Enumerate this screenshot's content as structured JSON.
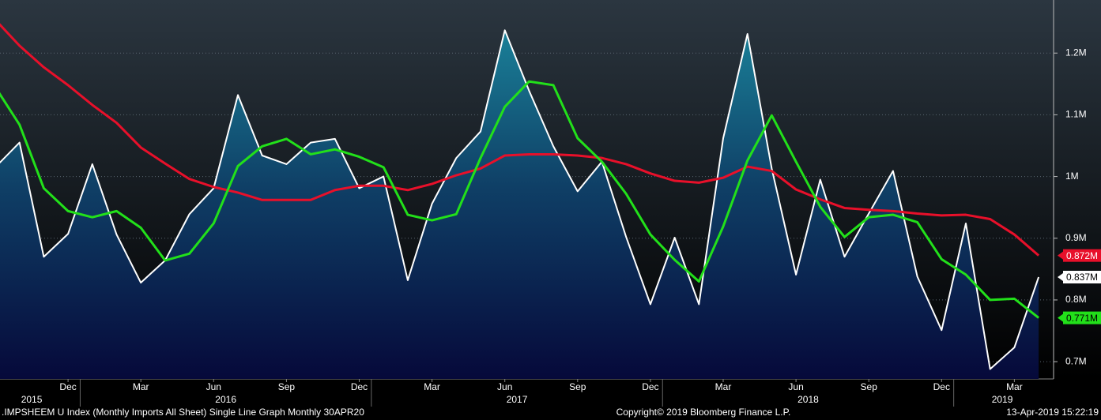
{
  "chart_data": {
    "type": "line",
    "categories": [
      null,
      null,
      null,
      "Dec",
      null,
      null,
      "Mar",
      null,
      null,
      "Jun",
      null,
      null,
      "Sep",
      null,
      null,
      "Dec",
      null,
      null,
      "Mar",
      null,
      null,
      "Jun",
      null,
      null,
      "Sep",
      null,
      null,
      "Dec",
      null,
      null,
      "Mar",
      null,
      null,
      "Jun",
      null,
      null,
      "Sep",
      null,
      null,
      "Dec",
      null,
      null,
      "Mar",
      null
    ],
    "years": [
      "2015",
      "2016",
      "2017",
      "2018",
      "2019"
    ],
    "year_starts": [
      0,
      4,
      16,
      28,
      40
    ],
    "series": [
      {
        "color": "#ffffff",
        "area": true,
        "label_text_color": "#000000",
        "last_value_label": "0.837M",
        "values": [
          1015000,
          1055000,
          870000,
          907000,
          1020000,
          906000,
          828000,
          864000,
          939000,
          981000,
          1132000,
          1034000,
          1020000,
          1055000,
          1061000,
          981000,
          1000000,
          832000,
          956000,
          1030000,
          1073000,
          1237000,
          1139000,
          1049000,
          976000,
          1024000,
          902000,
          793000,
          901000,
          793000,
          1062000,
          1231000,
          1013000,
          841000,
          995000,
          870000,
          940000,
          1009000,
          838000,
          751000,
          924000,
          688000,
          723000,
          837000
        ]
      },
      {
        "color": "#e8102a",
        "label_text_color": "#ffffff",
        "last_value_label": "0.872M",
        "values": [
          1254000,
          1212000,
          1177000,
          1148000,
          1116000,
          1087000,
          1047000,
          1021000,
          996000,
          983000,
          974000,
          962000,
          962000,
          962000,
          978000,
          985000,
          985000,
          978000,
          988000,
          1002000,
          1013000,
          1034000,
          1036000,
          1036000,
          1034000,
          1030000,
          1020000,
          1005000,
          993000,
          990000,
          998000,
          1016000,
          1009000,
          979000,
          963000,
          949000,
          946000,
          944000,
          940000,
          937000,
          938000,
          931000,
          906000,
          872000
        ]
      },
      {
        "color": "#22e01a",
        "label_text_color": "#000000",
        "last_value_label": "0.771M",
        "values": [
          1145000,
          1084000,
          981000,
          944000,
          934000,
          944000,
          917000,
          864000,
          875000,
          924000,
          1017000,
          1049000,
          1061000,
          1036000,
          1044000,
          1032000,
          1015000,
          938000,
          929000,
          939000,
          1030000,
          1113000,
          1154000,
          1148000,
          1062000,
          1024000,
          972000,
          906000,
          865000,
          830000,
          919000,
          1026000,
          1099000,
          1024000,
          951000,
          902000,
          934000,
          938000,
          926000,
          866000,
          841000,
          800000,
          802000,
          771000
        ]
      }
    ],
    "ylim": [
      672000,
      1286000
    ],
    "yticks": [
      {
        "value": 700000,
        "label": "0.7M"
      },
      {
        "value": 800000,
        "label": "0.8M"
      },
      {
        "value": 900000,
        "label": "0.9M"
      },
      {
        "value": 1000000,
        "label": "1M"
      },
      {
        "value": 1100000,
        "label": "1.1M"
      },
      {
        "value": 1200000,
        "label": "1.2M"
      }
    ],
    "grid": true
  },
  "footer": {
    "left": ".IMPSHEEM U Index (Monthly Imports All Sheet) Single Line Graph  Monthly 30APR20",
    "center": "Copyright© 2019 Bloomberg Finance L.P.",
    "right": "13-Apr-2019 15:22:19"
  }
}
